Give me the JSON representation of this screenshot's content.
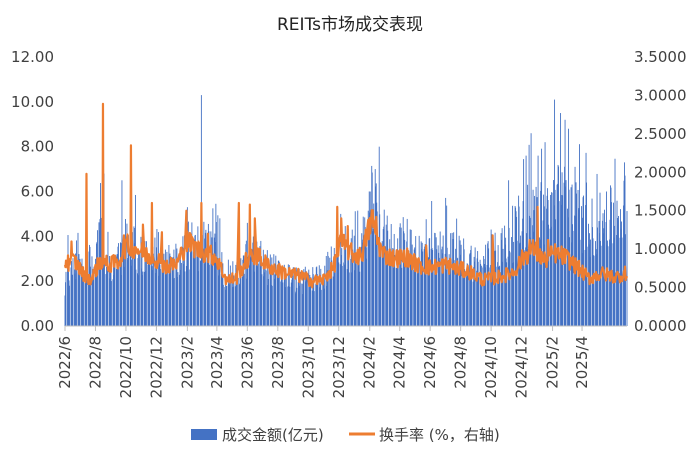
{
  "chart_data": {
    "type": "bar",
    "title": "REITs市场成交表现",
    "x_tick_labels": [
      "2022/6",
      "2022/8",
      "2022/10",
      "2022/12",
      "2023/2",
      "2023/4",
      "2023/6",
      "2023/8",
      "2023/10",
      "2023/12",
      "2024/2",
      "2024/4",
      "2024/6",
      "2024/8",
      "2024/10",
      "2024/12",
      "2025/2",
      "2025/4"
    ],
    "x_range": [
      "2022-06-01",
      "2025-06-30"
    ],
    "y_left": {
      "lim": [
        0,
        12
      ],
      "ticks": [
        0,
        2,
        4,
        6,
        8,
        10,
        12
      ],
      "tick_labels": [
        "0.00",
        "2.00",
        "4.00",
        "6.00",
        "8.00",
        "10.00",
        "12.00"
      ]
    },
    "y_right": {
      "lim": [
        0,
        3.5
      ],
      "ticks": [
        0,
        0.5,
        1,
        1.5,
        2,
        2.5,
        3,
        3.5
      ],
      "tick_labels": [
        "0.0000",
        "0.5000",
        "1.0000",
        "1.5000",
        "2.0000",
        "2.5000",
        "3.0000",
        "3.5000"
      ]
    },
    "grid": false,
    "legend_position": "bottom",
    "series": [
      {
        "name": "成交金额(亿元)",
        "type": "bar",
        "axis": "left",
        "color": "#4472c4",
        "description_of_values": "daily turnover, approximate trend read from chart",
        "anchors": [
          [
            "2022-06-01",
            2.0
          ],
          [
            "2022-06-20",
            3.1
          ],
          [
            "2022-07-10",
            2.6
          ],
          [
            "2022-07-25",
            3.0
          ],
          [
            "2022-08-10",
            4.5
          ],
          [
            "2022-08-25",
            2.6
          ],
          [
            "2022-09-15",
            2.9
          ],
          [
            "2022-10-01",
            3.8
          ],
          [
            "2022-10-20",
            3.4
          ],
          [
            "2022-11-10",
            3.0
          ],
          [
            "2022-12-01",
            3.4
          ],
          [
            "2022-12-20",
            2.7
          ],
          [
            "2023-01-10",
            3.0
          ],
          [
            "2023-02-01",
            3.7
          ],
          [
            "2023-02-20",
            3.5
          ],
          [
            "2023-03-10",
            3.8
          ],
          [
            "2023-03-30",
            3.2
          ],
          [
            "2023-04-20",
            2.3
          ],
          [
            "2023-05-10",
            2.2
          ],
          [
            "2023-05-30",
            3.0
          ],
          [
            "2023-06-20",
            3.2
          ],
          [
            "2023-07-10",
            2.7
          ],
          [
            "2023-08-01",
            2.4
          ],
          [
            "2023-08-25",
            2.2
          ],
          [
            "2023-09-15",
            2.0
          ],
          [
            "2023-10-10",
            2.1
          ],
          [
            "2023-10-30",
            2.3
          ],
          [
            "2023-11-20",
            2.9
          ],
          [
            "2023-12-05",
            3.6
          ],
          [
            "2023-12-25",
            3.3
          ],
          [
            "2024-01-15",
            3.4
          ],
          [
            "2024-02-05",
            5.5
          ],
          [
            "2024-02-25",
            4.2
          ],
          [
            "2024-03-20",
            3.6
          ],
          [
            "2024-04-15",
            3.8
          ],
          [
            "2024-05-10",
            3.3
          ],
          [
            "2024-06-05",
            3.2
          ],
          [
            "2024-07-01",
            3.4
          ],
          [
            "2024-07-25",
            3.2
          ],
          [
            "2024-08-20",
            3.0
          ],
          [
            "2024-09-15",
            2.6
          ],
          [
            "2024-10-05",
            3.6
          ],
          [
            "2024-10-25",
            3.5
          ],
          [
            "2024-11-15",
            4.2
          ],
          [
            "2024-12-05",
            4.8
          ],
          [
            "2024-12-25",
            5.2
          ],
          [
            "2025-01-15",
            5.0
          ],
          [
            "2025-02-05",
            5.6
          ],
          [
            "2025-02-25",
            5.8
          ],
          [
            "2025-03-20",
            5.0
          ],
          [
            "2025-04-15",
            4.4
          ],
          [
            "2025-05-10",
            4.6
          ],
          [
            "2025-06-10",
            5.0
          ],
          [
            "2025-06-30",
            5.4
          ]
        ],
        "spikes": [
          [
            "2022-06-18",
            4.0
          ],
          [
            "2022-08-18",
            6.8
          ],
          [
            "2022-08-26",
            4.2
          ],
          [
            "2022-09-23",
            6.5
          ],
          [
            "2022-10-11",
            5.2
          ],
          [
            "2023-02-01",
            5.3
          ],
          [
            "2023-03-01",
            10.3
          ],
          [
            "2023-06-01",
            4.6
          ],
          [
            "2023-12-05",
            5.0
          ],
          [
            "2024-02-20",
            8.0
          ],
          [
            "2024-02-12",
            7.0
          ],
          [
            "2024-04-20",
            5.1
          ],
          [
            "2024-08-25",
            5.0
          ],
          [
            "2024-11-05",
            6.5
          ],
          [
            "2024-12-10",
            7.6
          ],
          [
            "2024-12-20",
            8.6
          ],
          [
            "2025-01-03",
            7.6
          ],
          [
            "2025-01-17",
            8.2
          ],
          [
            "2025-02-05",
            10.1
          ],
          [
            "2025-02-17",
            9.5
          ],
          [
            "2025-02-26",
            9.2
          ],
          [
            "2025-03-05",
            8.8
          ],
          [
            "2025-03-18",
            7.1
          ],
          [
            "2025-04-10",
            6.4
          ],
          [
            "2025-05-20",
            6.0
          ],
          [
            "2025-06-25",
            7.3
          ]
        ]
      },
      {
        "name": "换手率 (%，右轴)",
        "type": "line",
        "axis": "right",
        "color": "#ed7d31",
        "description_of_values": "daily turnover rate, approximate trend read from chart",
        "anchors": [
          [
            "2022-06-01",
            0.82
          ],
          [
            "2022-06-20",
            0.85
          ],
          [
            "2022-07-10",
            0.65
          ],
          [
            "2022-07-25",
            0.62
          ],
          [
            "2022-08-10",
            0.85
          ],
          [
            "2022-08-25",
            0.8
          ],
          [
            "2022-09-15",
            0.82
          ],
          [
            "2022-10-01",
            1.05
          ],
          [
            "2022-10-20",
            1.02
          ],
          [
            "2022-11-10",
            0.92
          ],
          [
            "2022-12-01",
            0.88
          ],
          [
            "2022-12-20",
            0.78
          ],
          [
            "2023-01-10",
            0.8
          ],
          [
            "2023-02-01",
            1.1
          ],
          [
            "2023-02-20",
            1.0
          ],
          [
            "2023-03-10",
            0.95
          ],
          [
            "2023-03-30",
            0.9
          ],
          [
            "2023-04-20",
            0.6
          ],
          [
            "2023-05-10",
            0.62
          ],
          [
            "2023-05-30",
            0.85
          ],
          [
            "2023-06-20",
            0.92
          ],
          [
            "2023-07-10",
            0.8
          ],
          [
            "2023-08-01",
            0.72
          ],
          [
            "2023-08-25",
            0.68
          ],
          [
            "2023-09-15",
            0.65
          ],
          [
            "2023-10-10",
            0.58
          ],
          [
            "2023-10-30",
            0.6
          ],
          [
            "2023-11-20",
            0.75
          ],
          [
            "2023-12-05",
            1.1
          ],
          [
            "2023-12-25",
            0.95
          ],
          [
            "2024-01-15",
            0.9
          ],
          [
            "2024-02-05",
            1.4
          ],
          [
            "2024-02-25",
            0.95
          ],
          [
            "2024-03-20",
            0.88
          ],
          [
            "2024-04-15",
            0.9
          ],
          [
            "2024-05-10",
            0.78
          ],
          [
            "2024-06-05",
            0.76
          ],
          [
            "2024-07-01",
            0.8
          ],
          [
            "2024-07-25",
            0.75
          ],
          [
            "2024-08-20",
            0.7
          ],
          [
            "2024-09-15",
            0.6
          ],
          [
            "2024-10-05",
            0.62
          ],
          [
            "2024-10-25",
            0.65
          ],
          [
            "2024-11-15",
            0.7
          ],
          [
            "2024-12-05",
            0.9
          ],
          [
            "2024-12-25",
            1.0
          ],
          [
            "2025-01-15",
            0.85
          ],
          [
            "2025-02-05",
            0.95
          ],
          [
            "2025-02-25",
            0.9
          ],
          [
            "2025-03-20",
            0.78
          ],
          [
            "2025-04-15",
            0.62
          ],
          [
            "2025-05-10",
            0.68
          ],
          [
            "2025-06-10",
            0.64
          ],
          [
            "2025-06-30",
            0.7
          ]
        ],
        "spikes": [
          [
            "2022-06-14",
            1.1
          ],
          [
            "2022-07-14",
            1.98
          ],
          [
            "2022-08-06",
            1.28
          ],
          [
            "2022-08-16",
            2.89
          ],
          [
            "2022-09-10",
            1.55
          ],
          [
            "2022-09-27",
            1.18
          ],
          [
            "2022-10-11",
            2.35
          ],
          [
            "2022-10-23",
            1.45
          ],
          [
            "2022-11-04",
            1.32
          ],
          [
            "2022-11-22",
            1.6
          ],
          [
            "2022-12-12",
            1.22
          ],
          [
            "2023-01-30",
            1.5
          ],
          [
            "2023-02-18",
            1.38
          ],
          [
            "2023-03-01",
            1.6
          ],
          [
            "2023-03-14",
            1.2
          ],
          [
            "2023-05-15",
            1.6
          ],
          [
            "2023-06-06",
            1.58
          ],
          [
            "2023-06-16",
            1.4
          ],
          [
            "2023-07-01",
            1.18
          ],
          [
            "2023-11-28",
            1.55
          ],
          [
            "2023-12-06",
            1.4
          ],
          [
            "2023-12-19",
            1.3
          ],
          [
            "2024-02-03",
            1.65
          ],
          [
            "2024-02-14",
            1.42
          ],
          [
            "2024-04-06",
            1.1
          ],
          [
            "2024-05-24",
            1.05
          ],
          [
            "2024-10-04",
            1.18
          ],
          [
            "2024-12-17",
            1.12
          ],
          [
            "2025-01-02",
            1.55
          ],
          [
            "2025-01-23",
            1.12
          ],
          [
            "2025-02-22",
            1.2
          ]
        ]
      }
    ]
  }
}
